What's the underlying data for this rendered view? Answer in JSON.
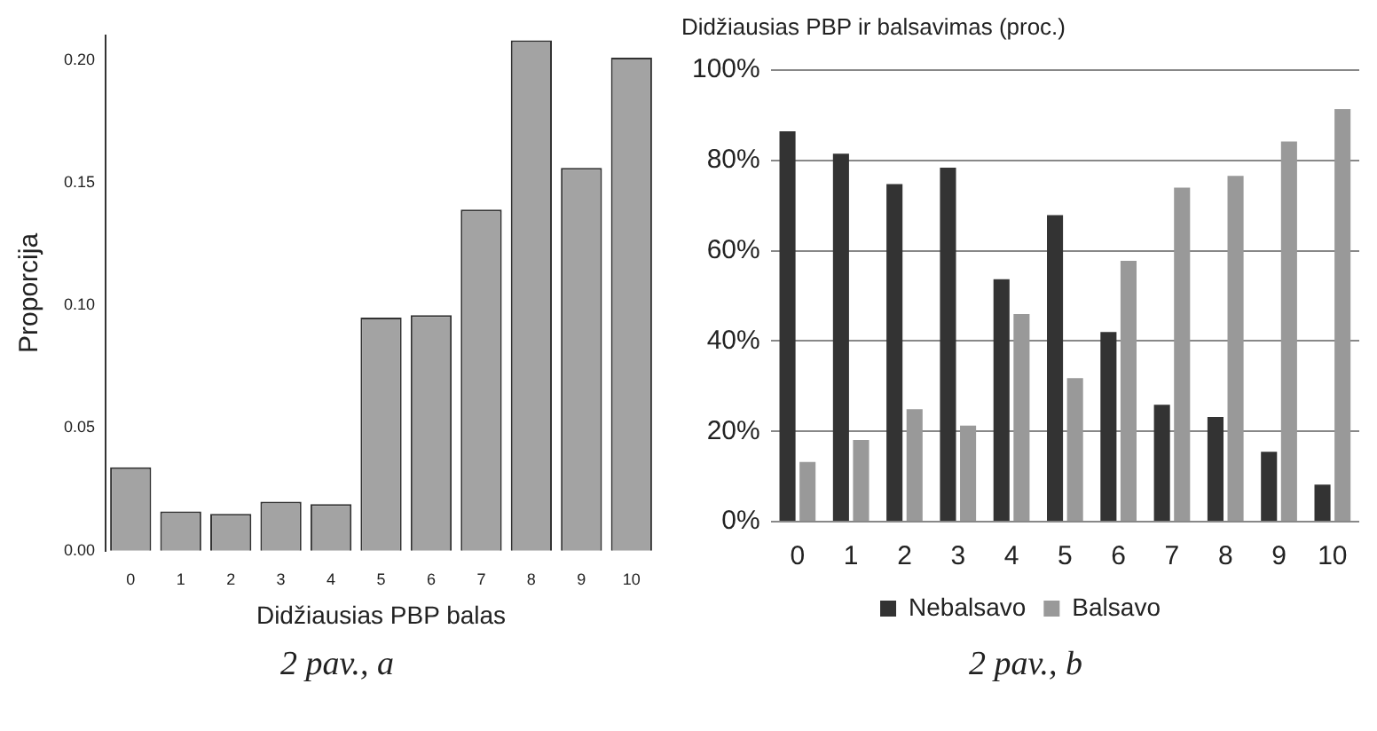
{
  "chart_data": [
    {
      "type": "bar",
      "xlabel": "Didžiausias PBP balas",
      "ylabel": "Proporcija",
      "categories": [
        "0",
        "1",
        "2",
        "3",
        "4",
        "5",
        "6",
        "7",
        "8",
        "9",
        "10"
      ],
      "values": [
        0.034,
        0.016,
        0.015,
        0.02,
        0.019,
        0.095,
        0.096,
        0.139,
        0.208,
        0.156,
        0.201
      ],
      "color": "#a3a3a3",
      "ylim": [
        0,
        0.21
      ],
      "yticks": [
        {
          "value": 0,
          "label": "0.00"
        },
        {
          "value": 0.05,
          "label": "0.05"
        },
        {
          "value": 0.1,
          "label": "0.10"
        },
        {
          "value": 0.15,
          "label": "0.15"
        },
        {
          "value": 0.2,
          "label": "0.20"
        }
      ],
      "grid": false,
      "legend": false,
      "annotations": [
        "2 pav., a"
      ]
    },
    {
      "type": "bar",
      "title": "Didžiausias PBP ir balsavimas (proc.)",
      "categories": [
        "0",
        "1",
        "2",
        "3",
        "4",
        "5",
        "6",
        "7",
        "8",
        "9",
        "10"
      ],
      "series": [
        {
          "name": "Nebalsavo",
          "color": "#333333",
          "values": [
            86.5,
            81.5,
            74.8,
            78.4,
            53.7,
            67.9,
            42.0,
            25.9,
            23.2,
            15.5,
            8.2
          ]
        },
        {
          "name": "Balsavo",
          "color": "#999999",
          "values": [
            13.2,
            18.1,
            24.9,
            21.3,
            46.0,
            31.8,
            57.8,
            74.0,
            76.6,
            84.2,
            91.4
          ]
        }
      ],
      "ylim": [
        0,
        100
      ],
      "yticks": [
        {
          "value": 0,
          "label": "0%"
        },
        {
          "value": 20,
          "label": "20%"
        },
        {
          "value": 40,
          "label": "40%"
        },
        {
          "value": 60,
          "label": "60%"
        },
        {
          "value": 80,
          "label": "80%"
        },
        {
          "value": 100,
          "label": "100%"
        }
      ],
      "grid": "y",
      "legend": "bottom",
      "annotations": [
        "2 pav., b"
      ]
    }
  ]
}
